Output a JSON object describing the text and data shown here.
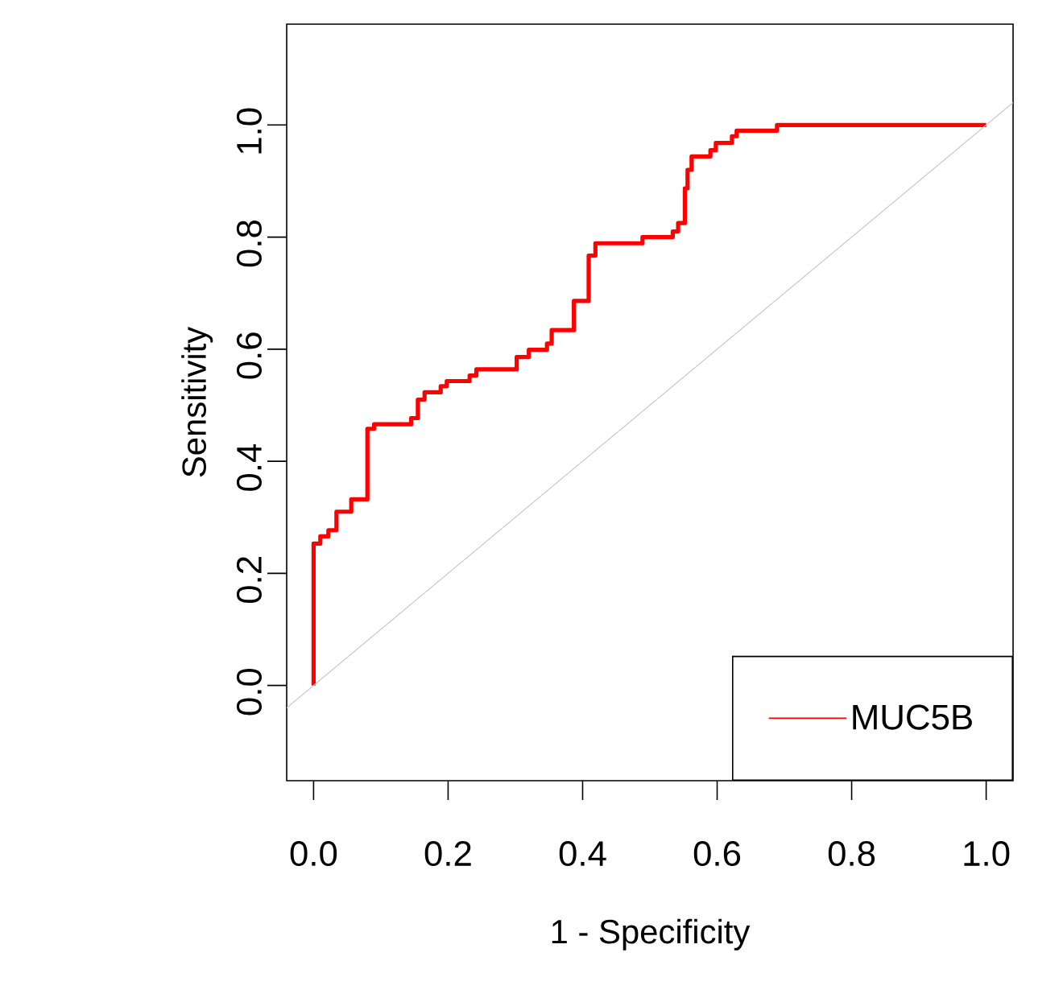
{
  "chart_data": {
    "type": "line",
    "xlabel": "1 - Specificity",
    "ylabel": "Sensitivity",
    "xlim": [
      -0.04,
      1.04
    ],
    "ylim": [
      -0.17,
      1.18
    ],
    "xticks": [
      {
        "value": 0,
        "label": "0.0"
      },
      {
        "value": 0.2,
        "label": "0.2"
      },
      {
        "value": 0.4,
        "label": "0.4"
      },
      {
        "value": 0.6,
        "label": "0.6"
      },
      {
        "value": 0.8,
        "label": "0.8"
      },
      {
        "value": 1,
        "label": "1.0"
      }
    ],
    "yticks": [
      {
        "value": 0,
        "label": "0.0"
      },
      {
        "value": 0.2,
        "label": "0.2"
      },
      {
        "value": 0.4,
        "label": "0.4"
      },
      {
        "value": 0.6,
        "label": "0.6"
      },
      {
        "value": 0.8,
        "label": "0.8"
      },
      {
        "value": 1,
        "label": "1.0"
      }
    ],
    "legend": "bottom right",
    "grid": false,
    "series": [
      {
        "name": "MUC5B",
        "color": "#ff0000",
        "x": [
          0,
          0,
          0.01,
          0.01,
          0.022,
          0.022,
          0.034,
          0.034,
          0.056,
          0.056,
          0.08,
          0.08,
          0.09,
          0.09,
          0.145,
          0.145,
          0.155,
          0.155,
          0.165,
          0.165,
          0.189,
          0.189,
          0.198,
          0.198,
          0.232,
          0.232,
          0.242,
          0.242,
          0.302,
          0.302,
          0.32,
          0.32,
          0.347,
          0.347,
          0.354,
          0.354,
          0.387,
          0.387,
          0.409,
          0.409,
          0.419,
          0.419,
          0.489,
          0.489,
          0.534,
          0.534,
          0.542,
          0.542,
          0.552,
          0.552,
          0.556,
          0.556,
          0.562,
          0.562,
          0.59,
          0.59,
          0.598,
          0.598,
          0.622,
          0.622,
          0.629,
          0.629,
          0.689,
          0.689,
          0.887,
          0.887,
          1.0
        ],
        "values": [
          0,
          0.253,
          0.253,
          0.266,
          0.266,
          0.277,
          0.277,
          0.31,
          0.31,
          0.332,
          0.332,
          0.458,
          0.458,
          0.466,
          0.466,
          0.477,
          0.477,
          0.51,
          0.51,
          0.523,
          0.523,
          0.534,
          0.534,
          0.543,
          0.543,
          0.553,
          0.553,
          0.564,
          0.564,
          0.586,
          0.586,
          0.599,
          0.599,
          0.61,
          0.61,
          0.634,
          0.634,
          0.686,
          0.686,
          0.767,
          0.767,
          0.789,
          0.789,
          0.8,
          0.8,
          0.81,
          0.81,
          0.825,
          0.825,
          0.887,
          0.887,
          0.92,
          0.92,
          0.944,
          0.944,
          0.955,
          0.955,
          0.968,
          0.968,
          0.98,
          0.98,
          0.99,
          0.99,
          1.0,
          1.0,
          1.0,
          1.0
        ]
      },
      {
        "color": "#c8c8c8",
        "x": [
          -0.04,
          1.04
        ],
        "values": [
          -0.04,
          1.04
        ]
      }
    ]
  }
}
